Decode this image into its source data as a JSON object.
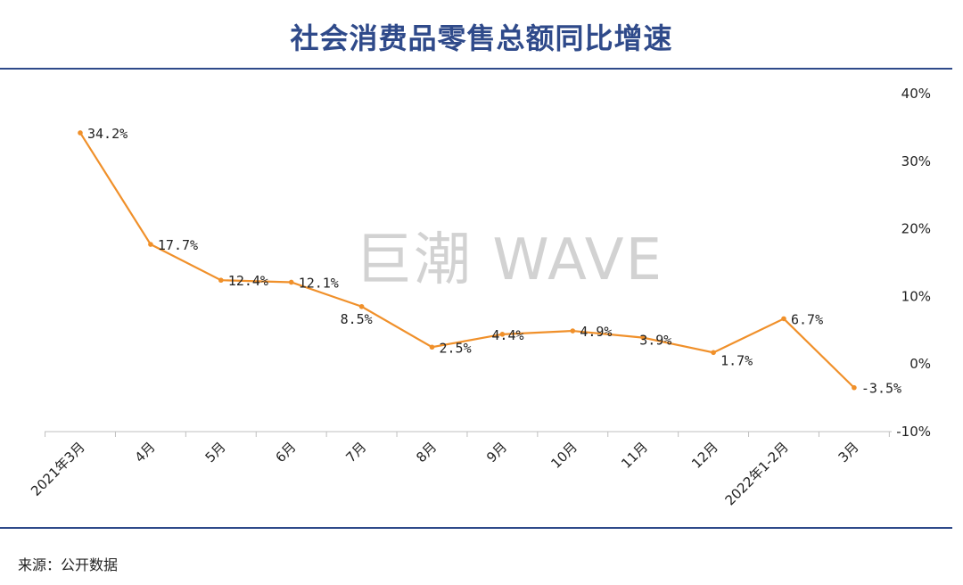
{
  "title": "社会消费品零售总额同比增速",
  "source": "来源：公开数据",
  "watermark": "巨潮 WAVE",
  "colors": {
    "line": "#f0902a",
    "title": "#2f4a8a",
    "axis": "#bfbfbf"
  },
  "chart_data": {
    "type": "line",
    "title": "社会消费品零售总额同比增速",
    "categories": [
      "2021年3月",
      "4月",
      "5月",
      "6月",
      "7月",
      "8月",
      "9月",
      "10月",
      "11月",
      "12月",
      "2022年1-2月",
      "3月"
    ],
    "series": [
      {
        "values": [
          34.2,
          17.7,
          12.4,
          12.1,
          8.5,
          2.5,
          4.4,
          4.9,
          3.9,
          1.7,
          6.7,
          -3.5
        ]
      }
    ],
    "data_labels": [
      "34.2%",
      "17.7%",
      "12.4%",
      "12.1%",
      "8.5%",
      "2.5%",
      "4.4%",
      "4.9%",
      "3.9%",
      "1.7%",
      "6.7%",
      "-3.5%"
    ],
    "y_ticks": [
      40,
      30,
      20,
      10,
      0,
      -10
    ],
    "y_tick_labels": [
      "40%",
      "30%",
      "20%",
      "10%",
      "0%",
      "-10%"
    ],
    "ylim": [
      -10,
      40
    ],
    "y_axis_side": "right",
    "grid": false,
    "legend": "none"
  }
}
